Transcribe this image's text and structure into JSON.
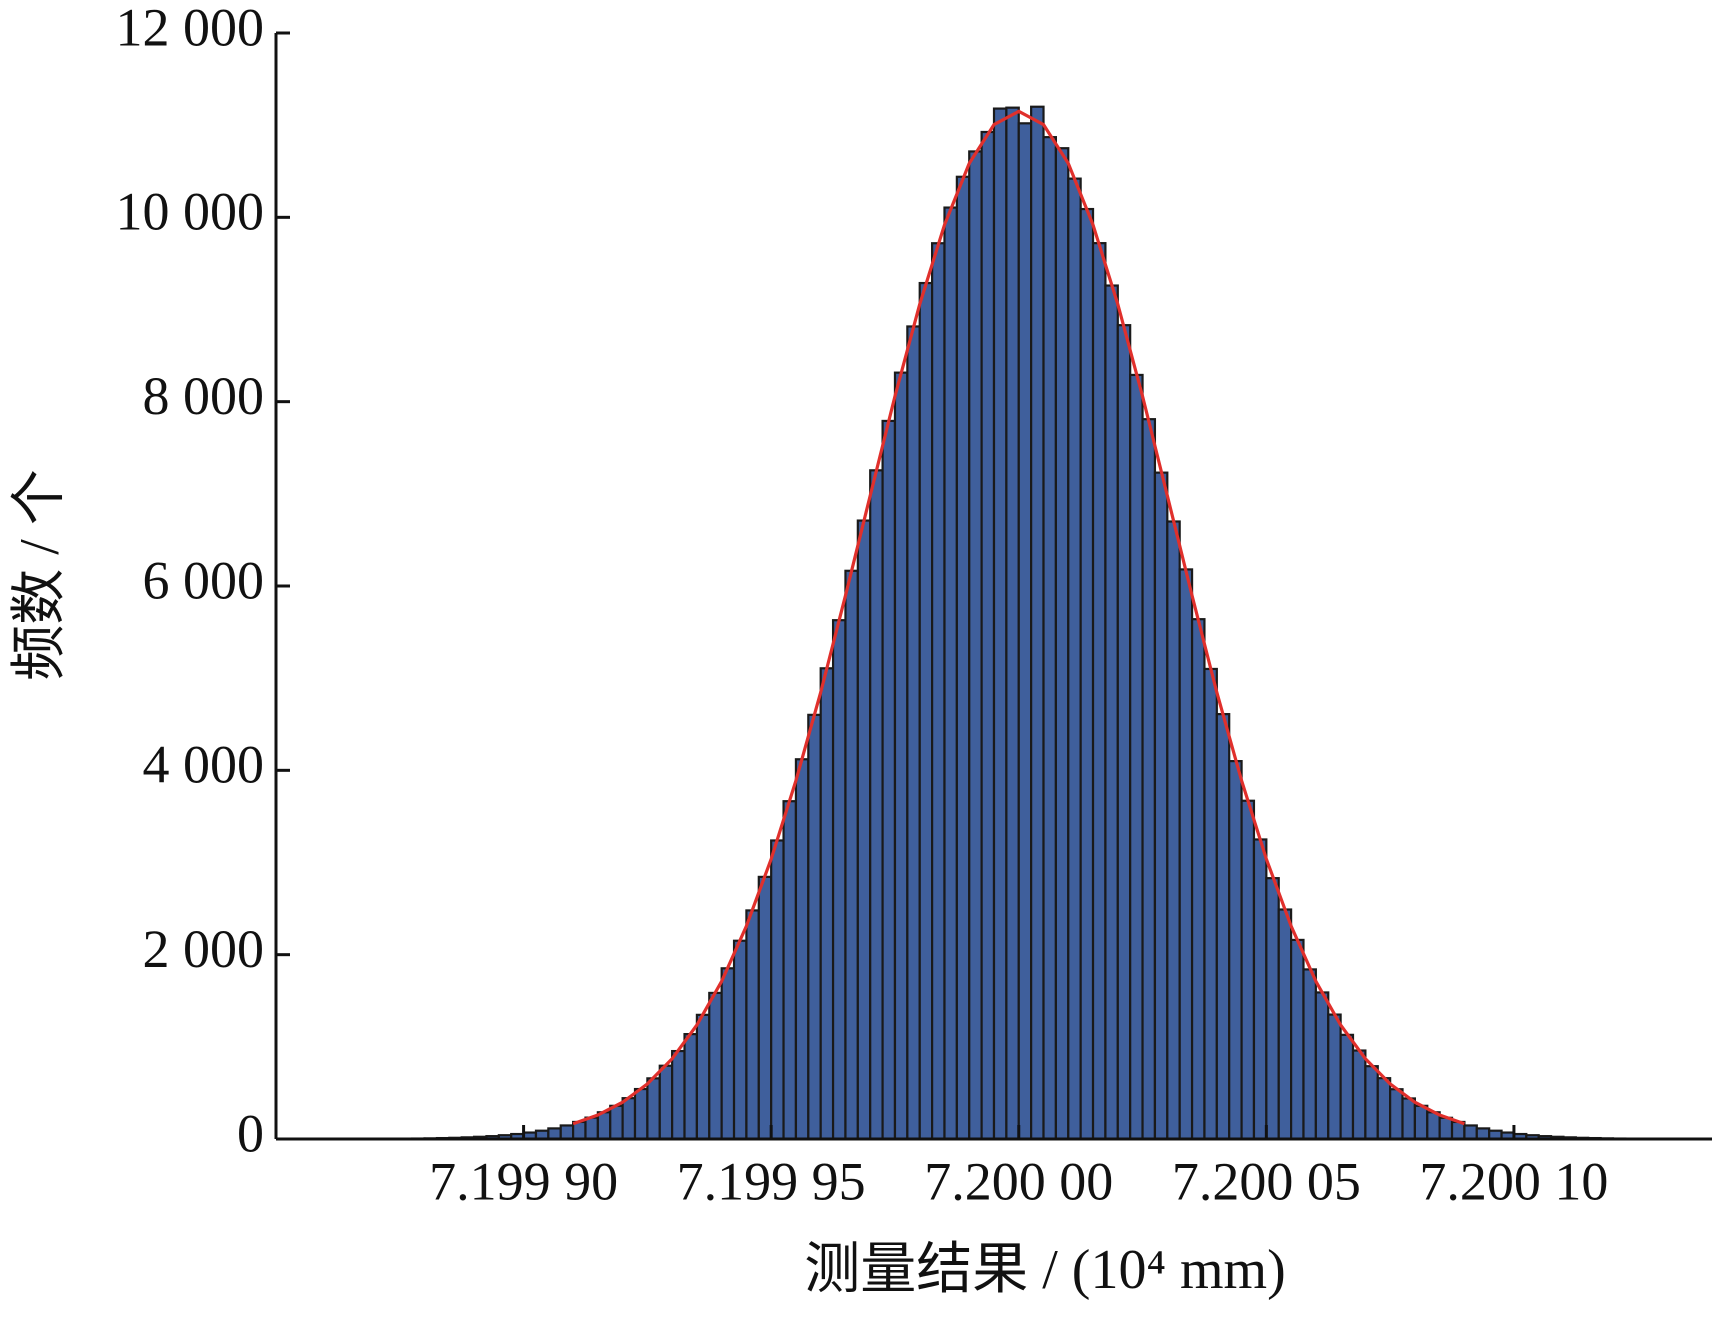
{
  "chart_data": {
    "type": "histogram",
    "x_label": "测量结果 / (10⁴ mm)",
    "y_label": "频数 / 个",
    "color": "#3f5f9c",
    "edge_color": "#1a1a1a",
    "xlim": [
      7.19985,
      7.20014
    ],
    "ylim": [
      0,
      12000
    ],
    "xticks": [
      {
        "value": 7.1999,
        "label": "7.199 90"
      },
      {
        "value": 7.19995,
        "label": "7.199 95"
      },
      {
        "value": 7.2,
        "label": "7.200 00"
      },
      {
        "value": 7.20005,
        "label": "7.200 05"
      },
      {
        "value": 7.2001,
        "label": "7.200 10"
      }
    ],
    "yticks": [
      0,
      {
        "value": 2000,
        "label": "2 000"
      },
      {
        "value": 4000,
        "label": "4 000"
      },
      {
        "value": 6000,
        "label": "6 000"
      },
      {
        "value": 8000,
        "label": "8 000"
      },
      {
        "value": 10000,
        "label": "10 000"
      },
      {
        "value": 12000,
        "label": "12 000"
      }
    ],
    "bins": [
      7.19986,
      7.1998625,
      7.199865,
      7.1998675,
      7.19987,
      7.1998725,
      7.199875,
      7.1998775,
      7.19988,
      7.1998825,
      7.199885,
      7.1998875,
      7.19989,
      7.1998925,
      7.199895,
      7.1998975,
      7.1999,
      7.1999025,
      7.199905,
      7.1999075,
      7.19991,
      7.1999125,
      7.199915,
      7.1999175,
      7.19992,
      7.1999225,
      7.199925,
      7.1999275,
      7.19993,
      7.1999325,
      7.199935,
      7.1999375,
      7.19994,
      7.1999425,
      7.199945,
      7.1999475,
      7.19995,
      7.1999525,
      7.199955,
      7.1999575,
      7.19996,
      7.1999625,
      7.199965,
      7.1999675,
      7.19997,
      7.1999725,
      7.199975,
      7.1999775,
      7.19998,
      7.1999825,
      7.199985,
      7.1999875,
      7.19999,
      7.1999925,
      7.199995,
      7.1999975,
      7.2,
      7.2000025,
      7.200005,
      7.2000075,
      7.20001,
      7.2000125,
      7.200015,
      7.2000175,
      7.20002,
      7.2000225,
      7.200025,
      7.2000275,
      7.20003,
      7.2000325,
      7.200035,
      7.2000375,
      7.20004,
      7.2000425,
      7.200045,
      7.2000475,
      7.20005,
      7.2000525,
      7.200055,
      7.2000575,
      7.20006,
      7.2000625,
      7.200065,
      7.2000675,
      7.20007,
      7.2000725,
      7.200075,
      7.2000775,
      7.20008,
      7.2000825,
      7.200085,
      7.2000875,
      7.20009,
      7.2000925,
      7.200095,
      7.2000975,
      7.2001,
      7.2001025,
      7.200105,
      7.2001075,
      7.20011,
      7.2001125,
      7.200115,
      7.2001175,
      7.20012,
      7.2001225,
      7.200125,
      7.2001275,
      7.20013,
      7.2001325,
      7.200135,
      7.2001375,
      7.20014
    ],
    "counts": [
      0,
      1,
      1,
      1,
      2,
      3,
      4,
      5,
      7,
      10,
      13,
      18,
      24,
      31,
      41,
      54,
      70,
      90,
      115,
      147,
      185,
      232,
      290,
      360,
      443,
      542,
      658,
      795,
      954,
      1138,
      1347,
      1585,
      1852,
      2151,
      2480,
      2844,
      3239,
      3665,
      4120,
      4602,
      5107,
      5629,
      6165,
      6710,
      7255,
      7791,
      8315,
      8816,
      9287,
      9719,
      10106,
      10440,
      10715,
      10926,
      11180,
      11190,
      11020,
      11200,
      10870,
      10750,
      10420,
      10090,
      9720,
      9260,
      8830,
      8290,
      7810,
      7230,
      6700,
      6180,
      5640,
      5100,
      4610,
      4100,
      3670,
      3250,
      2830,
      2490,
      2160,
      1840,
      1590,
      1350,
      1130,
      960,
      790,
      660,
      540,
      440,
      360,
      290,
      230,
      185,
      147,
      115,
      90,
      70,
      54,
      41,
      31,
      24,
      18,
      13,
      10,
      7,
      5,
      4,
      3,
      2,
      1,
      1,
      1,
      0
    ],
    "overlay": {
      "type": "line",
      "color": "#e0302c",
      "x": [
        7.19991,
        7.199915,
        7.19992,
        7.199925,
        7.19993,
        7.199935,
        7.19994,
        7.199945,
        7.19995,
        7.199955,
        7.19996,
        7.199965,
        7.19997,
        7.199975,
        7.19998,
        7.199985,
        7.19999,
        7.199995,
        7.2,
        7.200005,
        7.20001,
        7.200015,
        7.20002,
        7.200025,
        7.20003,
        7.200035,
        7.20004,
        7.200045,
        7.20005,
        7.200055,
        7.20006,
        7.200065,
        7.20007,
        7.200075,
        7.20008,
        7.200085,
        7.20009
      ],
      "values": [
        165,
        260,
        399,
        598,
        871,
        1237,
        1711,
        2311,
        3038,
        3889,
        4846,
        5895,
        6981,
        8059,
        9057,
        9918,
        10585,
        11006,
        11150,
        11006,
        10585,
        9918,
        9057,
        8059,
        6981,
        5895,
        4846,
        3889,
        3038,
        2311,
        1711,
        1237,
        871,
        598,
        399,
        260,
        165
      ]
    }
  }
}
